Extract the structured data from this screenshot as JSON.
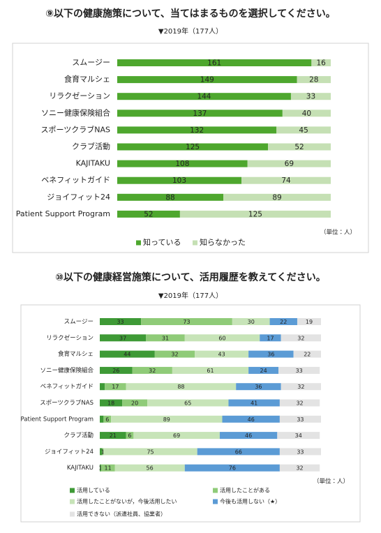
{
  "chart_data": [
    {
      "type": "bar",
      "orientation": "horizontal",
      "stacked": true,
      "title": "⑨以下の健康施策について、当てはまるものを選択してください。",
      "subtitle": "▼2019年（177人）",
      "note": "（単位：人）",
      "legend": "bottom",
      "categories": [
        "スムージー",
        "食育マルシェ",
        "リラクゼーション",
        "ソニー健康保険組合",
        "スポーツクラブNAS",
        "クラブ活動",
        "KAJITAKU",
        "ベネフィットガイド",
        "ジョイフィット24",
        "Patient Support Program"
      ],
      "series": [
        {
          "name": "知っている",
          "color": "#4ea72e",
          "values": [
            161,
            149,
            144,
            137,
            132,
            125,
            108,
            103,
            88,
            52
          ]
        },
        {
          "name": "知らなかった",
          "color": "#c5e0b4",
          "values": [
            16,
            28,
            33,
            40,
            45,
            52,
            69,
            74,
            89,
            125
          ]
        }
      ]
    },
    {
      "type": "bar",
      "orientation": "horizontal",
      "stacked": true,
      "title": "⑩以下の健康経営施策について、活用履歴を教えてください。",
      "subtitle": "▼2019年（177人）",
      "note": "（単位：人）",
      "legend": "bottom",
      "categories": [
        "スムージー",
        "リラクゼーション",
        "食育マルシェ",
        "ソニー健康保険組合",
        "ベネフィットガイド",
        "スポーツクラブNAS",
        "Patient Support Program",
        "クラブ活動",
        "ジョイフィット24",
        "KAJITAKU"
      ],
      "series": [
        {
          "name": "活用している",
          "color": "#3e9a36",
          "values": [
            33,
            37,
            44,
            26,
            4,
            18,
            3,
            21,
            2,
            1
          ],
          "value_labels": [
            "33",
            "37",
            "44",
            "26",
            null,
            "18",
            null,
            "21",
            null,
            "1"
          ]
        },
        {
          "name": "活用したことがある",
          "color": "#8fcb78",
          "values": [
            73,
            31,
            32,
            32,
            17,
            20,
            6,
            6,
            1,
            11
          ]
        },
        {
          "name": "活用したことがないが，今後活用したい",
          "color": "#c7e4b8",
          "values": [
            30,
            60,
            43,
            61,
            88,
            65,
            89,
            69,
            75,
            56
          ]
        },
        {
          "name": "今後も活用しない（★）",
          "color": "#5b9bd5",
          "values": [
            22,
            17,
            36,
            24,
            36,
            41,
            46,
            46,
            66,
            76
          ]
        },
        {
          "name": "活用できない（派遣社員、協業者）",
          "color": "#e3e3e3",
          "values": [
            19,
            32,
            22,
            33,
            32,
            32,
            33,
            34,
            33,
            32
          ]
        }
      ]
    }
  ]
}
